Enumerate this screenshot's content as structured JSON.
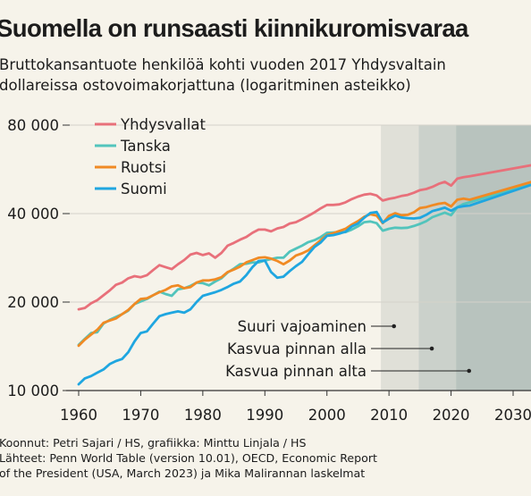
{
  "title": "Suomella on runsaasti kiinnikuromisvaraa",
  "subtitle": "Bruttokansantuote henkilöä kohti vuoden 2017 Yhdysvaltain dollareissa ostovoimakorjattuna (logaritminen asteikko)",
  "footer": {
    "line1": "Koonnut: Petri Sajari / HS, grafiikka: Minttu Linjala / HS",
    "line2": "Lähteet: Penn World Table (version 10.01), OECD, Economic Report",
    "line3": "of the President (USA, March 2023) ja Mika Malirannan laskelmat"
  },
  "colors": {
    "Yhdysvallat": "#e8707a",
    "Tanska": "#52c4bc",
    "Ruotsi": "#f08a24",
    "Suomi": "#1fa6e0",
    "grid": "#d4d2ca",
    "band1": "#e0e0d8",
    "band2": "#cbd1cb",
    "band3": "#b8c3be"
  },
  "chart_data": {
    "type": "line",
    "yscale": "log",
    "ylim": [
      10000,
      85000
    ],
    "xlim": [
      1959,
      2034
    ],
    "yticks": [
      10000,
      20000,
      40000,
      80000
    ],
    "ytick_labels": [
      "10 000",
      "20 000",
      "40 000",
      "80 000"
    ],
    "xticks": [
      1960,
      1970,
      1980,
      1990,
      2000,
      2010,
      2020,
      2030
    ],
    "xtick_labels": [
      "1960",
      "1970",
      "1980",
      "1990",
      "2000",
      "2010",
      "2020",
      "2030"
    ],
    "grid": true,
    "legend": "top-left",
    "series": [
      {
        "name": "Yhdysvallat",
        "x": [
          1960,
          1961,
          1962,
          1963,
          1964,
          1965,
          1966,
          1967,
          1968,
          1969,
          1970,
          1971,
          1972,
          1973,
          1974,
          1975,
          1976,
          1977,
          1978,
          1979,
          1980,
          1981,
          1982,
          1983,
          1984,
          1985,
          1986,
          1987,
          1988,
          1989,
          1990,
          1991,
          1992,
          1993,
          1994,
          1995,
          1996,
          1997,
          1998,
          1999,
          2000,
          2001,
          2002,
          2003,
          2004,
          2005,
          2006,
          2007,
          2008,
          2009,
          2010,
          2011,
          2012,
          2013,
          2014,
          2015,
          2016,
          2017,
          2018,
          2019,
          2020,
          2021,
          2022,
          2023,
          2034
        ],
        "values": [
          18900,
          19100,
          19800,
          20300,
          21100,
          21900,
          22900,
          23300,
          24100,
          24500,
          24300,
          24700,
          25700,
          26700,
          26300,
          25900,
          26900,
          27800,
          29000,
          29400,
          28900,
          29300,
          28300,
          29400,
          31100,
          31800,
          32600,
          33300,
          34400,
          35300,
          35300,
          34800,
          35600,
          36000,
          37000,
          37400,
          38300,
          39300,
          40400,
          41700,
          42800,
          42800,
          43000,
          43700,
          44800,
          45700,
          46400,
          46700,
          46100,
          44300,
          44900,
          45300,
          45900,
          46300,
          47100,
          48100,
          48500,
          49300,
          50500,
          51300,
          49800,
          52600,
          53200,
          53600,
          59000
        ]
      },
      {
        "name": "Tanska",
        "x": [
          1960,
          1961,
          1962,
          1963,
          1964,
          1965,
          1966,
          1967,
          1968,
          1969,
          1970,
          1971,
          1972,
          1973,
          1974,
          1975,
          1976,
          1977,
          1978,
          1979,
          1980,
          1981,
          1982,
          1983,
          1984,
          1985,
          1986,
          1987,
          1988,
          1989,
          1990,
          1991,
          1992,
          1993,
          1994,
          1995,
          1996,
          1997,
          1998,
          1999,
          2000,
          2001,
          2002,
          2003,
          2004,
          2005,
          2006,
          2007,
          2008,
          2009,
          2010,
          2011,
          2012,
          2013,
          2014,
          2015,
          2016,
          2017,
          2018,
          2019,
          2020,
          2021,
          2022,
          2023,
          2034
        ],
        "values": [
          14300,
          15000,
          15700,
          15800,
          16900,
          17400,
          17800,
          18200,
          18700,
          19700,
          20100,
          20500,
          21100,
          21700,
          21300,
          21000,
          22100,
          22300,
          22700,
          23300,
          23200,
          22800,
          23500,
          24100,
          25200,
          26000,
          26900,
          27000,
          27300,
          27300,
          27700,
          28000,
          28300,
          28300,
          29700,
          30400,
          31100,
          32000,
          32500,
          33300,
          34400,
          34500,
          34600,
          34600,
          35300,
          36200,
          37400,
          37600,
          37100,
          35000,
          35500,
          35800,
          35700,
          35800,
          36300,
          36900,
          37700,
          38900,
          39600,
          40300,
          39500,
          42000,
          43100,
          43700,
          51500
        ]
      },
      {
        "name": "Ruotsi",
        "x": [
          1960,
          1961,
          1962,
          1963,
          1964,
          1965,
          1966,
          1967,
          1968,
          1969,
          1970,
          1971,
          1972,
          1973,
          1974,
          1975,
          1976,
          1977,
          1978,
          1979,
          1980,
          1981,
          1982,
          1983,
          1984,
          1985,
          1986,
          1987,
          1988,
          1989,
          1990,
          1991,
          1992,
          1993,
          1994,
          1995,
          1996,
          1997,
          1998,
          1999,
          2000,
          2001,
          2002,
          2003,
          2004,
          2005,
          2006,
          2007,
          2008,
          2009,
          2010,
          2011,
          2012,
          2013,
          2014,
          2015,
          2016,
          2017,
          2018,
          2019,
          2020,
          2021,
          2022,
          2023,
          2034
        ],
        "values": [
          14200,
          14900,
          15500,
          16100,
          17000,
          17300,
          17600,
          18200,
          18800,
          19700,
          20500,
          20600,
          21100,
          21600,
          22000,
          22600,
          22800,
          22300,
          22500,
          23300,
          23700,
          23700,
          23900,
          24300,
          25300,
          25800,
          26400,
          27300,
          27800,
          28300,
          28400,
          28100,
          27600,
          26900,
          27700,
          28800,
          29300,
          30000,
          31200,
          32500,
          33800,
          34300,
          34900,
          35500,
          36700,
          37700,
          39000,
          39800,
          39400,
          37100,
          39300,
          40100,
          39500,
          39600,
          40400,
          41800,
          42100,
          42700,
          43200,
          43500,
          42300,
          44600,
          45000,
          44600,
          52000
        ]
      },
      {
        "name": "Suomi",
        "x": [
          1960,
          1961,
          1962,
          1963,
          1964,
          1965,
          1966,
          1967,
          1968,
          1969,
          1970,
          1971,
          1972,
          1973,
          1974,
          1975,
          1976,
          1977,
          1978,
          1979,
          1980,
          1981,
          1982,
          1983,
          1984,
          1985,
          1986,
          1987,
          1988,
          1989,
          1990,
          1991,
          1992,
          1993,
          1994,
          1995,
          1996,
          1997,
          1998,
          1999,
          2000,
          2001,
          2002,
          2003,
          2004,
          2005,
          2006,
          2007,
          2008,
          2009,
          2010,
          2011,
          2012,
          2013,
          2014,
          2015,
          2016,
          2017,
          2018,
          2019,
          2020,
          2021,
          2022,
          2023,
          2034
        ],
        "values": [
          10500,
          11000,
          11200,
          11500,
          11800,
          12300,
          12600,
          12800,
          13500,
          14700,
          15700,
          15900,
          16900,
          17900,
          18200,
          18400,
          18600,
          18400,
          18900,
          20000,
          21000,
          21300,
          21600,
          22000,
          22500,
          23100,
          23500,
          24700,
          26300,
          27600,
          27700,
          25300,
          24200,
          24400,
          25500,
          26500,
          27400,
          29100,
          30800,
          31900,
          33600,
          33800,
          34200,
          34700,
          36200,
          37000,
          38700,
          40200,
          40500,
          37300,
          38400,
          39400,
          38800,
          38600,
          38500,
          38700,
          39600,
          40800,
          41300,
          41900,
          40900,
          42000,
          42400,
          42600,
          51000
        ]
      }
    ],
    "scenarios": [
      {
        "label": "Suuri vajoaminen",
        "start": 2008.7
      },
      {
        "label": "Kasvua pinnan alla",
        "start": 2014.8
      },
      {
        "label": "Kasvua pinnan alta",
        "start": 2020.8
      }
    ],
    "scenario_end": 2033
  }
}
